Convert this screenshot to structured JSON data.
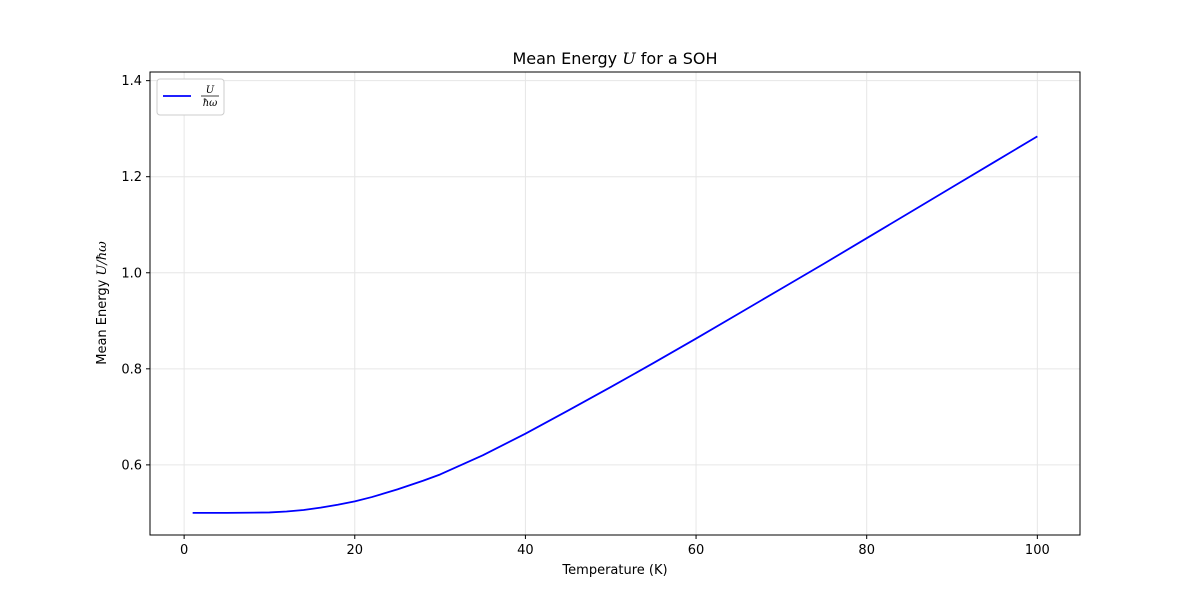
{
  "chart_data": {
    "type": "line",
    "title_prefix": "Mean Energy ",
    "title_symbol": "U",
    "title_suffix": " for a SOH",
    "xlabel": "Temperature (K)",
    "ylabel_prefix": "Mean Energy ",
    "ylabel_symbol": "U/ħω",
    "xlim": [
      -4,
      105
    ],
    "ylim": [
      0.454,
      1.418
    ],
    "x_ticks": [
      0,
      20,
      40,
      60,
      80,
      100
    ],
    "y_ticks": [
      0.6,
      0.8,
      1.0,
      1.2,
      1.4
    ],
    "x_tick_labels": [
      "0",
      "20",
      "40",
      "60",
      "80",
      "100"
    ],
    "y_tick_labels": [
      "0.6",
      "0.8",
      "1.0",
      "1.2",
      "1.4"
    ],
    "grid": true,
    "legend_position": "top-left",
    "series": [
      {
        "name_numerator": "U",
        "name_denominator": "ħω",
        "color": "#0000ff",
        "x": [
          1,
          5,
          10,
          12,
          14,
          16,
          18,
          20,
          22,
          25,
          28,
          30,
          35,
          40,
          45,
          50,
          55,
          60,
          65,
          70,
          75,
          80,
          85,
          90,
          95,
          100
        ],
        "y": [
          0.5,
          0.5,
          0.501,
          0.503,
          0.506,
          0.511,
          0.517,
          0.524,
          0.533,
          0.549,
          0.567,
          0.58,
          0.62,
          0.665,
          0.713,
          0.762,
          0.812,
          0.863,
          0.915,
          0.967,
          1.019,
          1.072,
          1.125,
          1.178,
          1.231,
          1.284
        ]
      }
    ]
  }
}
